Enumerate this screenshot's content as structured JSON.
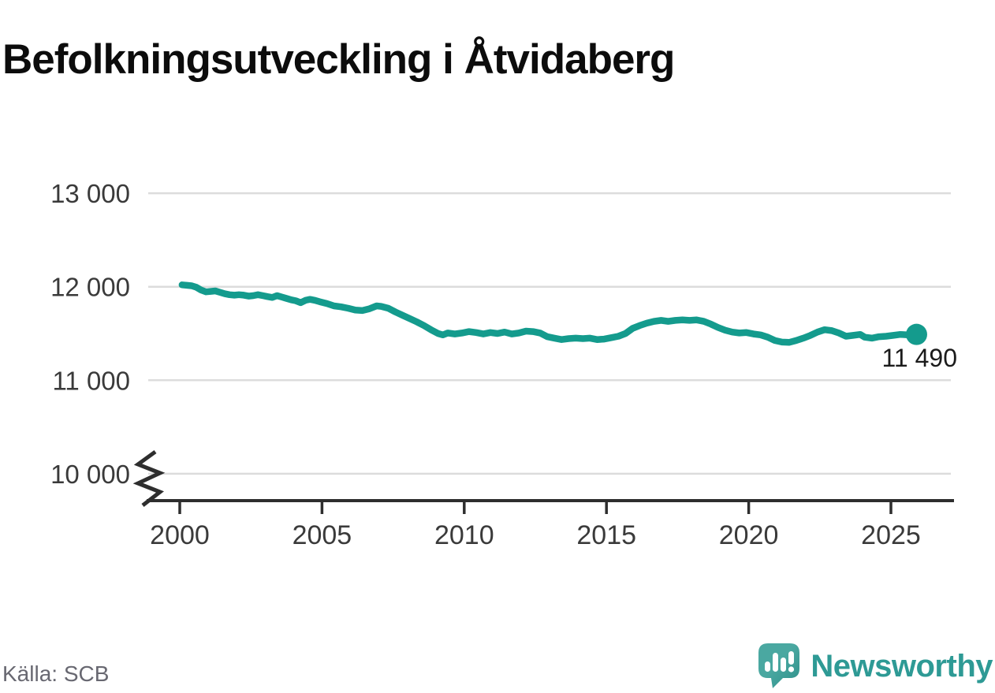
{
  "header": {
    "title": "Befolkningsutveckling i Åtvidaberg"
  },
  "footer": {
    "source": "Källa: SCB",
    "brand": "Newsworthy"
  },
  "colors": {
    "line": "#149b8d",
    "grid": "#dcdcdc",
    "axis": "#2e2e2e",
    "tick_label": "#3a3a3a",
    "end_dot": "#149b8d",
    "logo_teal_light": "#4aa8a1",
    "logo_teal_dark": "#2e8f89"
  },
  "chart_data": {
    "type": "line",
    "title": "Befolkningsutveckling i Åtvidaberg",
    "xlabel": "",
    "ylabel": "",
    "xlim": [
      1998.8,
      2027.2
    ],
    "ylim": [
      10000,
      13000
    ],
    "y_axis_break": true,
    "grid": true,
    "legend_position": "none",
    "end_label": "11 490",
    "end_value": 11490,
    "x_ticks": [
      {
        "v": 2000,
        "label": "2000"
      },
      {
        "v": 2005,
        "label": "2005"
      },
      {
        "v": 2010,
        "label": "2010"
      },
      {
        "v": 2015,
        "label": "2015"
      },
      {
        "v": 2020,
        "label": "2020"
      },
      {
        "v": 2025,
        "label": "2025"
      }
    ],
    "y_ticks": [
      {
        "v": 13000,
        "label": "13 000"
      },
      {
        "v": 12000,
        "label": "12 000"
      },
      {
        "v": 11000,
        "label": "11 000"
      },
      {
        "v": 10000,
        "label": "10 000"
      }
    ],
    "series": [
      {
        "name": "population",
        "color": "#149b8d",
        "points": [
          [
            2000.08,
            12020
          ],
          [
            2000.25,
            12015
          ],
          [
            2000.42,
            12010
          ],
          [
            2000.58,
            11995
          ],
          [
            2000.75,
            11965
          ],
          [
            2000.92,
            11945
          ],
          [
            2001.08,
            11950
          ],
          [
            2001.25,
            11955
          ],
          [
            2001.42,
            11940
          ],
          [
            2001.58,
            11925
          ],
          [
            2001.75,
            11915
          ],
          [
            2001.92,
            11910
          ],
          [
            2002.08,
            11915
          ],
          [
            2002.25,
            11910
          ],
          [
            2002.42,
            11900
          ],
          [
            2002.58,
            11905
          ],
          [
            2002.75,
            11915
          ],
          [
            2002.92,
            11905
          ],
          [
            2003.08,
            11895
          ],
          [
            2003.25,
            11885
          ],
          [
            2003.42,
            11905
          ],
          [
            2003.58,
            11890
          ],
          [
            2003.75,
            11875
          ],
          [
            2003.92,
            11860
          ],
          [
            2004.08,
            11850
          ],
          [
            2004.25,
            11830
          ],
          [
            2004.42,
            11855
          ],
          [
            2004.58,
            11865
          ],
          [
            2004.75,
            11855
          ],
          [
            2004.92,
            11840
          ],
          [
            2005.17,
            11820
          ],
          [
            2005.42,
            11795
          ],
          [
            2005.67,
            11785
          ],
          [
            2005.92,
            11770
          ],
          [
            2006.17,
            11750
          ],
          [
            2006.42,
            11745
          ],
          [
            2006.67,
            11765
          ],
          [
            2006.92,
            11795
          ],
          [
            2007.08,
            11790
          ],
          [
            2007.33,
            11770
          ],
          [
            2007.58,
            11730
          ],
          [
            2007.83,
            11695
          ],
          [
            2008.08,
            11660
          ],
          [
            2008.33,
            11625
          ],
          [
            2008.58,
            11585
          ],
          [
            2008.83,
            11540
          ],
          [
            2009.08,
            11500
          ],
          [
            2009.25,
            11485
          ],
          [
            2009.42,
            11505
          ],
          [
            2009.67,
            11495
          ],
          [
            2009.92,
            11505
          ],
          [
            2010.17,
            11520
          ],
          [
            2010.42,
            11510
          ],
          [
            2010.67,
            11495
          ],
          [
            2010.92,
            11510
          ],
          [
            2011.17,
            11500
          ],
          [
            2011.42,
            11515
          ],
          [
            2011.67,
            11495
          ],
          [
            2011.92,
            11505
          ],
          [
            2012.17,
            11525
          ],
          [
            2012.42,
            11520
          ],
          [
            2012.67,
            11505
          ],
          [
            2012.92,
            11465
          ],
          [
            2013.17,
            11450
          ],
          [
            2013.42,
            11435
          ],
          [
            2013.67,
            11445
          ],
          [
            2013.92,
            11450
          ],
          [
            2014.17,
            11445
          ],
          [
            2014.42,
            11450
          ],
          [
            2014.67,
            11435
          ],
          [
            2014.92,
            11440
          ],
          [
            2015.17,
            11455
          ],
          [
            2015.42,
            11470
          ],
          [
            2015.67,
            11500
          ],
          [
            2015.92,
            11555
          ],
          [
            2016.17,
            11585
          ],
          [
            2016.42,
            11610
          ],
          [
            2016.67,
            11630
          ],
          [
            2016.92,
            11640
          ],
          [
            2017.17,
            11630
          ],
          [
            2017.42,
            11640
          ],
          [
            2017.67,
            11645
          ],
          [
            2017.92,
            11640
          ],
          [
            2018.17,
            11645
          ],
          [
            2018.42,
            11630
          ],
          [
            2018.67,
            11600
          ],
          [
            2018.92,
            11565
          ],
          [
            2019.17,
            11535
          ],
          [
            2019.42,
            11515
          ],
          [
            2019.67,
            11505
          ],
          [
            2019.92,
            11510
          ],
          [
            2020.17,
            11495
          ],
          [
            2020.42,
            11485
          ],
          [
            2020.67,
            11460
          ],
          [
            2020.92,
            11425
          ],
          [
            2021.17,
            11408
          ],
          [
            2021.42,
            11405
          ],
          [
            2021.67,
            11425
          ],
          [
            2021.92,
            11450
          ],
          [
            2022.17,
            11480
          ],
          [
            2022.42,
            11515
          ],
          [
            2022.67,
            11540
          ],
          [
            2022.92,
            11530
          ],
          [
            2023.17,
            11505
          ],
          [
            2023.42,
            11470
          ],
          [
            2023.67,
            11480
          ],
          [
            2023.92,
            11490
          ],
          [
            2024.08,
            11460
          ],
          [
            2024.33,
            11450
          ],
          [
            2024.58,
            11465
          ],
          [
            2024.83,
            11470
          ],
          [
            2025.08,
            11480
          ],
          [
            2025.33,
            11490
          ],
          [
            2025.58,
            11485
          ],
          [
            2025.9,
            11490
          ]
        ]
      }
    ]
  }
}
